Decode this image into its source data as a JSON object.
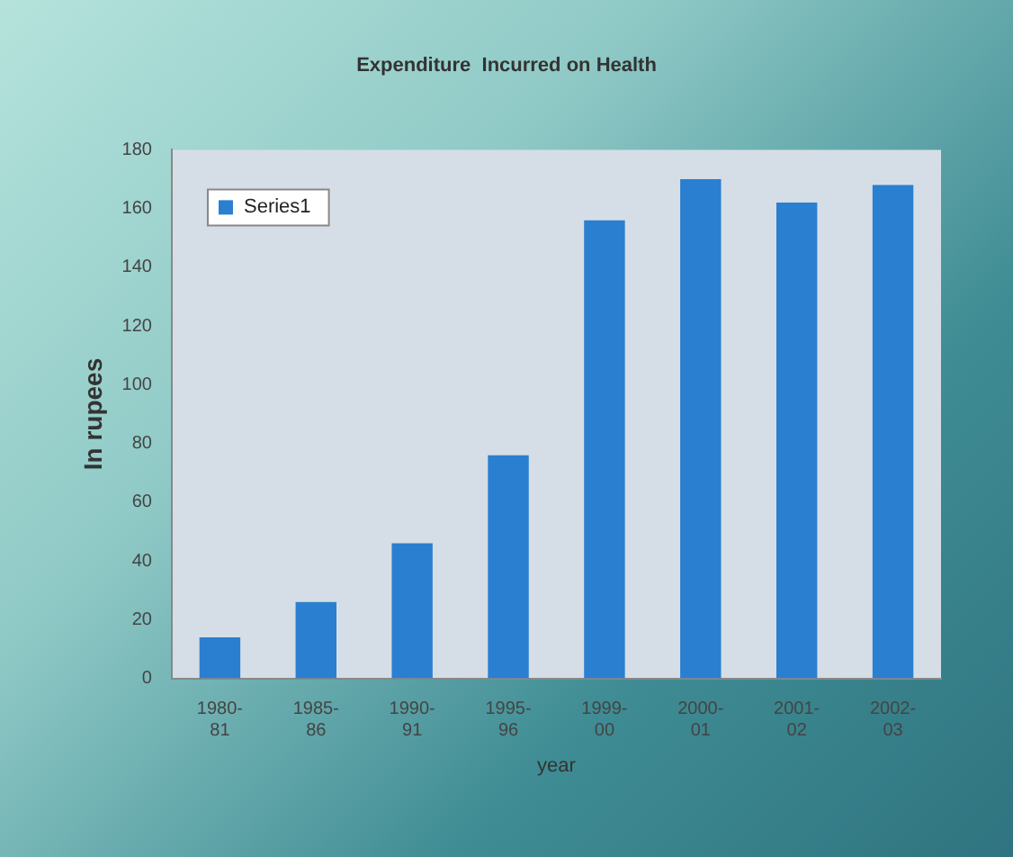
{
  "chart_data": {
    "type": "bar",
    "title": "Expenditure  Incurred on Health",
    "xlabel": "year",
    "ylabel": "In rupees",
    "categories": [
      "1980-81",
      "1985-86",
      "1990-91",
      "1995-96",
      "1999-00",
      "2000-01",
      "2001-02",
      "2002-03"
    ],
    "series": [
      {
        "name": "Series1",
        "color": "#2a7fd0",
        "values": [
          14,
          26,
          46,
          76,
          156,
          170,
          162,
          168
        ]
      }
    ],
    "ylim": [
      0,
      180
    ],
    "yticks": [
      0,
      20,
      40,
      60,
      80,
      100,
      120,
      140,
      160,
      180
    ],
    "grid": false,
    "legend": "top left"
  }
}
